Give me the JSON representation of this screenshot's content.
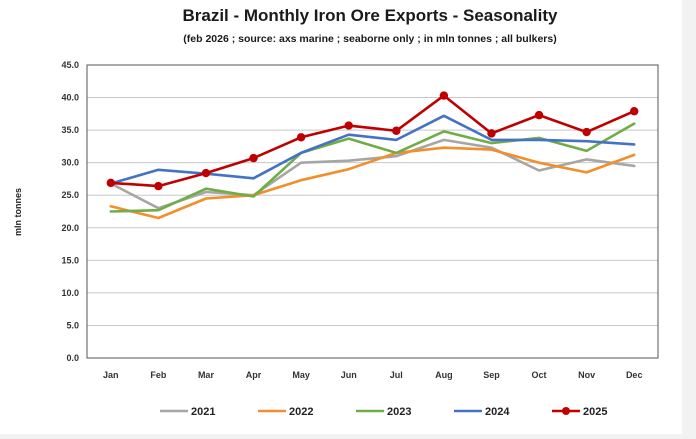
{
  "chart_data": {
    "type": "line",
    "title": "Brazil - Monthly Iron Ore Exports - Seasonality",
    "subtitle": "(feb 2026 ; source: axs marine ; seaborne only ; in mln tonnes ; all bulkers)",
    "xlabel": "",
    "ylabel": "mln tonnes",
    "ylim": [
      0,
      45
    ],
    "yticks": [
      "0.0",
      "5.0",
      "10.0",
      "15.0",
      "20.0",
      "25.0",
      "30.0",
      "35.0",
      "40.0",
      "45.0"
    ],
    "categories": [
      "Jan",
      "Feb",
      "Mar",
      "Apr",
      "May",
      "Jun",
      "Jul",
      "Aug",
      "Sep",
      "Oct",
      "Nov",
      "Dec"
    ],
    "legend_position": "bottom",
    "series": [
      {
        "name": "2021",
        "color": "#a6a6a6",
        "markers": false,
        "values": [
          26.8,
          23.0,
          25.5,
          25.0,
          30.0,
          30.3,
          31.0,
          33.5,
          32.3,
          28.8,
          30.5,
          29.5
        ]
      },
      {
        "name": "2022",
        "color": "#f28e2b",
        "markers": false,
        "values": [
          23.3,
          21.5,
          24.5,
          25.0,
          27.3,
          29.0,
          31.5,
          32.3,
          32.0,
          30.0,
          28.5,
          31.2
        ]
      },
      {
        "name": "2023",
        "color": "#70ad47",
        "markers": false,
        "values": [
          22.5,
          22.7,
          26.0,
          24.8,
          31.5,
          33.7,
          31.5,
          34.8,
          33.0,
          33.8,
          31.8,
          36.0
        ]
      },
      {
        "name": "2024",
        "color": "#4472c4",
        "markers": false,
        "values": [
          26.8,
          28.9,
          28.3,
          27.6,
          31.5,
          34.3,
          33.5,
          37.2,
          33.5,
          33.5,
          33.3,
          32.8
        ]
      },
      {
        "name": "2025",
        "color": "#c00000",
        "markers": true,
        "values": [
          26.9,
          26.4,
          28.4,
          30.7,
          33.9,
          35.7,
          34.9,
          40.3,
          34.5,
          37.3,
          34.7,
          37.9
        ]
      }
    ]
  }
}
